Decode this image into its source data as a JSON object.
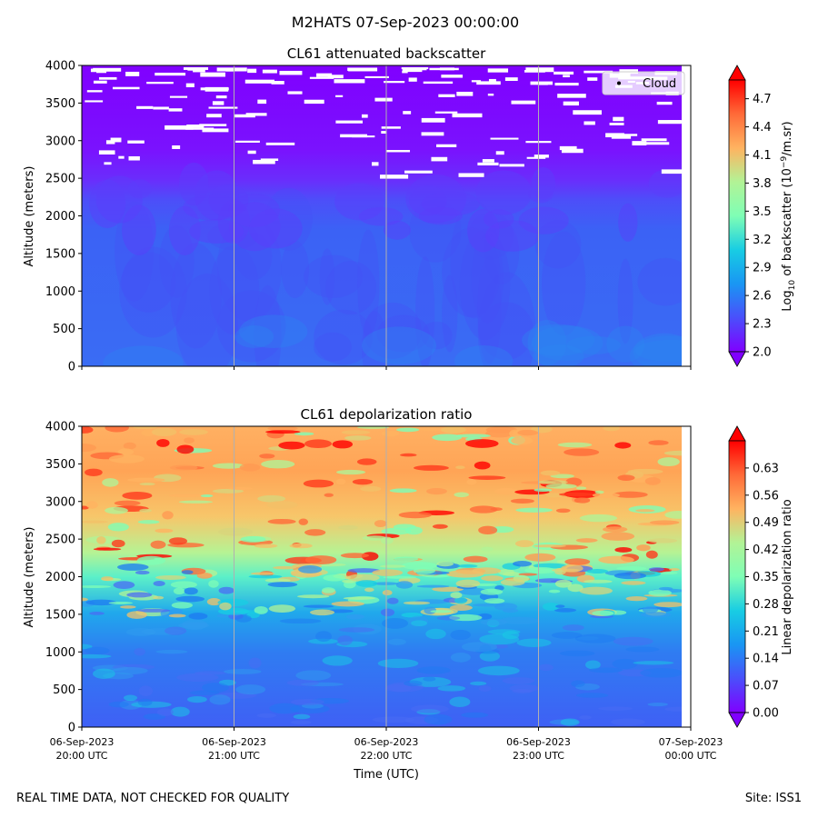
{
  "figure": {
    "suptitle": "M2HATS 07-Sep-2023 00:00:00",
    "footer_left": "REAL TIME DATA, NOT CHECKED FOR QUALITY",
    "footer_right": "Site: ISS1"
  },
  "chart_data": [
    {
      "type": "heatmap",
      "title": "CL61 attenuated backscatter",
      "ylabel": "Altitude (meters)",
      "xlabel": "",
      "ylim": [
        0,
        4000
      ],
      "yticks": [
        0,
        500,
        1000,
        1500,
        2000,
        2500,
        3000,
        3500,
        4000
      ],
      "xticks": [
        "06-Sep-2023 20:00 UTC",
        "06-Sep-2023 21:00 UTC",
        "06-Sep-2023 22:00 UTC",
        "06-Sep-2023 23:00 UTC",
        "07-Sep-2023 00:00 UTC"
      ],
      "xlim": [
        "2023-09-06 20:00",
        "2023-09-07 00:00"
      ],
      "grid": "vertical lines at each hour",
      "legend": {
        "placement": "top-right",
        "entries": [
          "Cloud"
        ]
      },
      "colorbar": {
        "label_parts": [
          "Log",
          "10",
          " of backscatter (10",
          "−9",
          "/m.sr)"
        ],
        "ticks": [
          "2.0",
          "2.3",
          "2.6",
          "2.9",
          "3.2",
          "3.5",
          "3.8",
          "4.1",
          "4.4",
          "4.7"
        ],
        "range": [
          2.0,
          4.9
        ],
        "colormap": "rainbow"
      },
      "description_of_field": {
        "0-2000 m": "about 2.5",
        "2000-2600 m": "transition to about 2.1",
        "above 2600 m": "about 2.0, with scattered cloud (white) patches between 2600 and 4000 m"
      }
    },
    {
      "type": "heatmap",
      "title": "CL61 depolarization ratio",
      "ylabel": "Altitude (meters)",
      "xlabel": "Time (UTC)",
      "ylim": [
        0,
        4000
      ],
      "yticks": [
        0,
        500,
        1000,
        1500,
        2000,
        2500,
        3000,
        3500,
        4000
      ],
      "xticks": [
        "06-Sep-2023 20:00 UTC",
        "06-Sep-2023 21:00 UTC",
        "06-Sep-2023 22:00 UTC",
        "06-Sep-2023 23:00 UTC",
        "07-Sep-2023 00:00 UTC"
      ],
      "xlim": [
        "2023-09-06 20:00",
        "2023-09-07 00:00"
      ],
      "grid": "vertical lines at each hour",
      "colorbar": {
        "label": "Linear depolarization ratio",
        "ticks": [
          "0.00",
          "0.07",
          "0.14",
          "0.21",
          "0.28",
          "0.35",
          "0.42",
          "0.49",
          "0.56",
          "0.63"
        ],
        "range": [
          0.0,
          0.7
        ],
        "colormap": "rainbow"
      },
      "description_of_field": {
        "0-1500 m": "about 0.05-0.12",
        "1500-2200 m": "about 0.15-0.30",
        "2200-4000 m": "about 0.35-0.65 with red patches"
      }
    }
  ]
}
